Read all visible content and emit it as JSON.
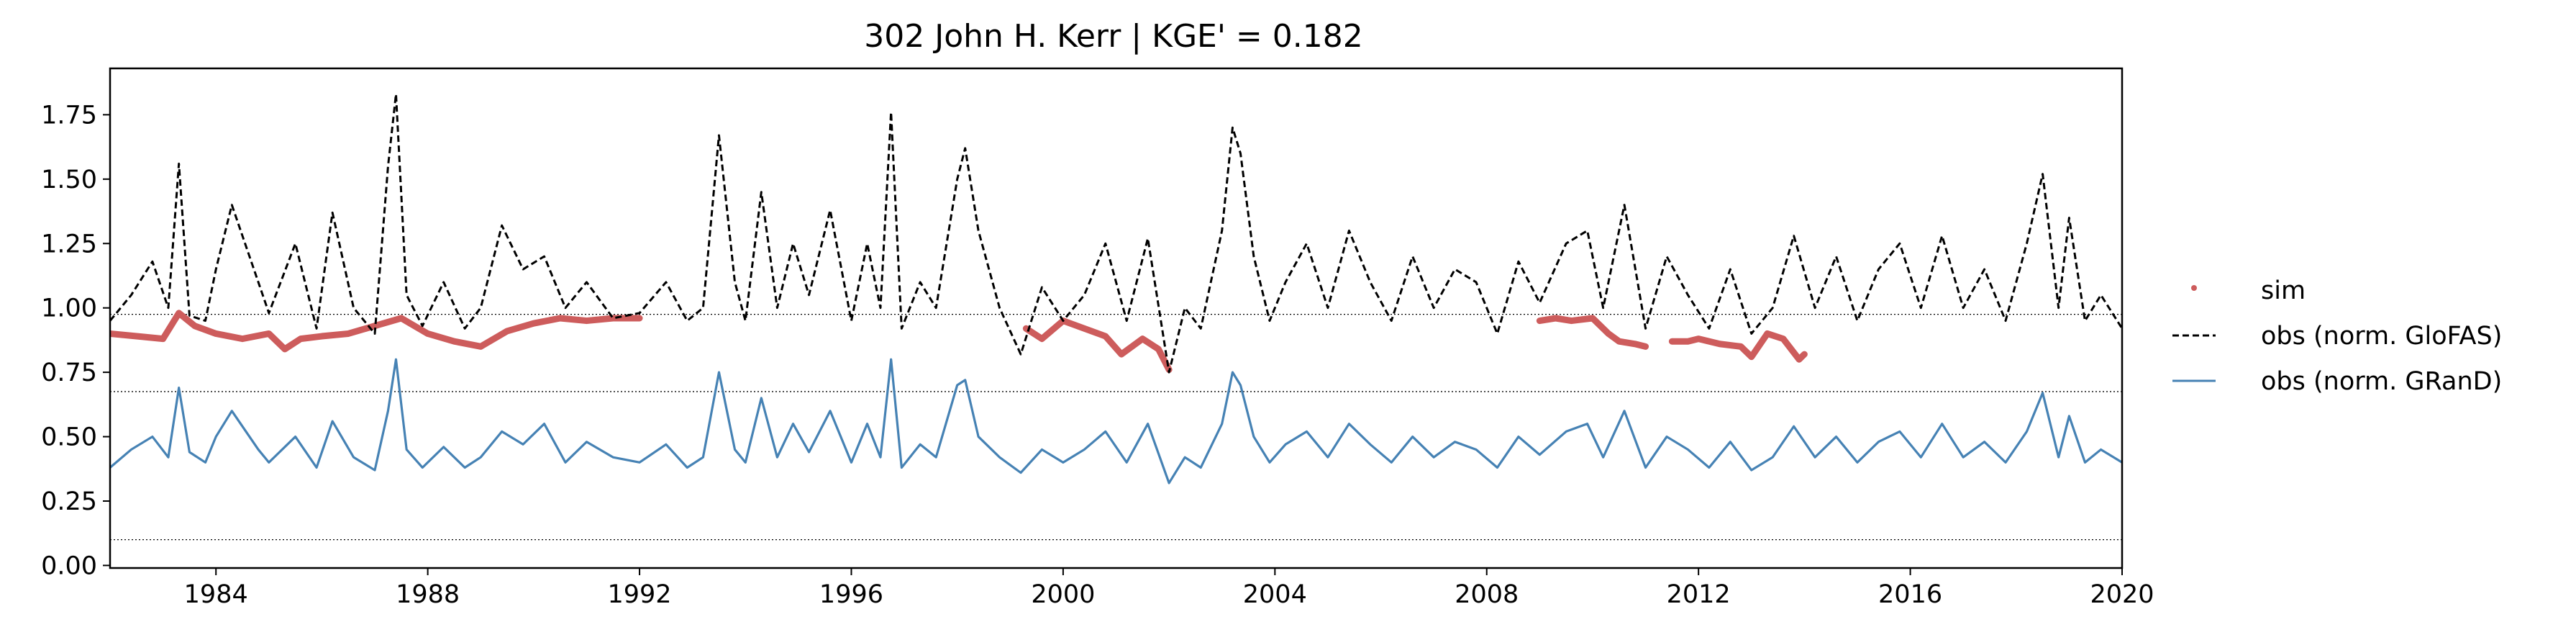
{
  "chart_data": {
    "type": "line",
    "title": "302  John H. Kerr | KGE' = 0.182",
    "xlabel": "",
    "ylabel": "",
    "xlim": [
      1982,
      2020
    ],
    "ylim": [
      -0.01,
      1.93
    ],
    "x_ticks": [
      "1984",
      "1988",
      "1992",
      "1996",
      "2000",
      "2004",
      "2008",
      "2012",
      "2016",
      "2020"
    ],
    "y_ticks": [
      "0.00",
      "0.25",
      "0.50",
      "0.75",
      "1.00",
      "1.25",
      "1.50",
      "1.75"
    ],
    "grid": false,
    "legend_placement": "outside-right",
    "reference_lines": [
      0.975,
      0.675,
      0.1
    ],
    "series": [
      {
        "name": "sim",
        "style": "dots",
        "color": "#cd5c5c",
        "segments": [
          {
            "x": [
              1982.0,
              1982.5,
              1983.0,
              1983.3,
              1983.6,
              1984.0,
              1984.5,
              1985.0,
              1985.3,
              1985.6,
              1986.0,
              1986.5,
              1987.0,
              1987.5,
              1988.0,
              1988.5,
              1989.0,
              1989.5,
              1990.0,
              1990.5,
              1991.0,
              1991.5,
              1992.0
            ],
            "y": [
              0.9,
              0.89,
              0.88,
              0.98,
              0.93,
              0.9,
              0.88,
              0.9,
              0.84,
              0.88,
              0.89,
              0.9,
              0.93,
              0.96,
              0.9,
              0.87,
              0.85,
              0.91,
              0.94,
              0.96,
              0.95,
              0.96,
              0.96
            ]
          },
          {
            "x": [
              1999.3,
              1999.6,
              2000.0,
              2000.4,
              2000.8,
              2001.1,
              2001.5,
              2001.8,
              2002.0
            ],
            "y": [
              0.92,
              0.88,
              0.95,
              0.92,
              0.89,
              0.82,
              0.88,
              0.84,
              0.76
            ]
          },
          {
            "x": [
              2009.0,
              2009.3,
              2009.6,
              2010.0,
              2010.3,
              2010.5,
              2010.8,
              2011.0
            ],
            "y": [
              0.95,
              0.96,
              0.95,
              0.96,
              0.9,
              0.87,
              0.86,
              0.85
            ]
          },
          {
            "x": [
              2011.5,
              2011.8,
              2012.0,
              2012.4,
              2012.8,
              2013.0,
              2013.3,
              2013.6,
              2013.9,
              2014.0
            ],
            "y": [
              0.87,
              0.87,
              0.88,
              0.86,
              0.85,
              0.81,
              0.9,
              0.88,
              0.8,
              0.82
            ]
          }
        ]
      },
      {
        "name": "obs (norm. GloFAS)",
        "style": "dashed",
        "color": "#000000",
        "x": [
          1982.0,
          1982.4,
          1982.8,
          1983.1,
          1983.3,
          1983.5,
          1983.8,
          1984.0,
          1984.3,
          1984.8,
          1985.0,
          1985.5,
          1985.9,
          1986.2,
          1986.6,
          1987.0,
          1987.25,
          1987.4,
          1987.6,
          1987.9,
          1988.3,
          1988.7,
          1989.0,
          1989.4,
          1989.8,
          1990.2,
          1990.6,
          1991.0,
          1991.5,
          1992.0,
          1992.5,
          1992.9,
          1993.2,
          1993.5,
          1993.8,
          1994.0,
          1994.3,
          1994.6,
          1994.9,
          1995.2,
          1995.6,
          1996.0,
          1996.3,
          1996.55,
          1996.75,
          1996.95,
          1997.3,
          1997.6,
          1998.0,
          1998.15,
          1998.4,
          1998.8,
          1999.2,
          1999.6,
          2000.0,
          2000.4,
          2000.8,
          2001.2,
          2001.6,
          2002.0,
          2002.3,
          2002.6,
          2003.0,
          2003.2,
          2003.35,
          2003.6,
          2003.9,
          2004.2,
          2004.6,
          2005.0,
          2005.4,
          2005.8,
          2006.2,
          2006.6,
          2007.0,
          2007.4,
          2007.8,
          2008.2,
          2008.6,
          2009.0,
          2009.5,
          2009.9,
          2010.2,
          2010.6,
          2011.0,
          2011.4,
          2011.8,
          2012.2,
          2012.6,
          2013.0,
          2013.4,
          2013.8,
          2014.2,
          2014.6,
          2015.0,
          2015.4,
          2015.8,
          2016.2,
          2016.6,
          2017.0,
          2017.4,
          2017.8,
          2018.2,
          2018.5,
          2018.8,
          2019.0,
          2019.3,
          2019.6,
          2020.0
        ],
        "y": [
          0.95,
          1.05,
          1.18,
          1.0,
          1.56,
          0.97,
          0.95,
          1.15,
          1.4,
          1.1,
          0.98,
          1.25,
          0.92,
          1.37,
          1.0,
          0.9,
          1.55,
          1.83,
          1.05,
          0.93,
          1.1,
          0.92,
          1.0,
          1.32,
          1.15,
          1.2,
          1.0,
          1.1,
          0.96,
          0.98,
          1.1,
          0.95,
          1.0,
          1.67,
          1.1,
          0.95,
          1.45,
          1.0,
          1.25,
          1.05,
          1.38,
          0.95,
          1.25,
          1.0,
          1.76,
          0.92,
          1.1,
          1.0,
          1.5,
          1.62,
          1.3,
          1.0,
          0.82,
          1.08,
          0.95,
          1.05,
          1.25,
          0.95,
          1.27,
          0.75,
          1.0,
          0.92,
          1.3,
          1.7,
          1.6,
          1.2,
          0.95,
          1.1,
          1.25,
          1.0,
          1.3,
          1.1,
          0.95,
          1.2,
          1.0,
          1.15,
          1.1,
          0.9,
          1.18,
          1.02,
          1.25,
          1.3,
          1.0,
          1.4,
          0.92,
          1.2,
          1.05,
          0.92,
          1.15,
          0.9,
          1.0,
          1.28,
          1.0,
          1.2,
          0.95,
          1.15,
          1.25,
          1.0,
          1.28,
          1.0,
          1.15,
          0.95,
          1.25,
          1.52,
          1.0,
          1.35,
          0.95,
          1.05,
          0.92
        ]
      },
      {
        "name": "obs (norm. GRanD)",
        "style": "solid",
        "color": "#4682b4",
        "x": [
          1982.0,
          1982.4,
          1982.8,
          1983.1,
          1983.3,
          1983.5,
          1983.8,
          1984.0,
          1984.3,
          1984.8,
          1985.0,
          1985.5,
          1985.9,
          1986.2,
          1986.6,
          1987.0,
          1987.25,
          1987.4,
          1987.6,
          1987.9,
          1988.3,
          1988.7,
          1989.0,
          1989.4,
          1989.8,
          1990.2,
          1990.6,
          1991.0,
          1991.5,
          1992.0,
          1992.5,
          1992.9,
          1993.2,
          1993.5,
          1993.8,
          1994.0,
          1994.3,
          1994.6,
          1994.9,
          1995.2,
          1995.6,
          1996.0,
          1996.3,
          1996.55,
          1996.75,
          1996.95,
          1997.3,
          1997.6,
          1998.0,
          1998.15,
          1998.4,
          1998.8,
          1999.2,
          1999.6,
          2000.0,
          2000.4,
          2000.8,
          2001.2,
          2001.6,
          2002.0,
          2002.3,
          2002.6,
          2003.0,
          2003.2,
          2003.35,
          2003.6,
          2003.9,
          2004.2,
          2004.6,
          2005.0,
          2005.4,
          2005.8,
          2006.2,
          2006.6,
          2007.0,
          2007.4,
          2007.8,
          2008.2,
          2008.6,
          2009.0,
          2009.5,
          2009.9,
          2010.2,
          2010.6,
          2011.0,
          2011.4,
          2011.8,
          2012.2,
          2012.6,
          2013.0,
          2013.4,
          2013.8,
          2014.2,
          2014.6,
          2015.0,
          2015.4,
          2015.8,
          2016.2,
          2016.6,
          2017.0,
          2017.4,
          2017.8,
          2018.2,
          2018.5,
          2018.8,
          2019.0,
          2019.3,
          2019.6,
          2020.0
        ],
        "y": [
          0.38,
          0.45,
          0.5,
          0.42,
          0.69,
          0.44,
          0.4,
          0.5,
          0.6,
          0.45,
          0.4,
          0.5,
          0.38,
          0.56,
          0.42,
          0.37,
          0.6,
          0.8,
          0.45,
          0.38,
          0.46,
          0.38,
          0.42,
          0.52,
          0.47,
          0.55,
          0.4,
          0.48,
          0.42,
          0.4,
          0.47,
          0.38,
          0.42,
          0.75,
          0.45,
          0.4,
          0.65,
          0.42,
          0.55,
          0.44,
          0.6,
          0.4,
          0.55,
          0.42,
          0.8,
          0.38,
          0.47,
          0.42,
          0.7,
          0.72,
          0.5,
          0.42,
          0.36,
          0.45,
          0.4,
          0.45,
          0.52,
          0.4,
          0.55,
          0.32,
          0.42,
          0.38,
          0.55,
          0.75,
          0.7,
          0.5,
          0.4,
          0.47,
          0.52,
          0.42,
          0.55,
          0.47,
          0.4,
          0.5,
          0.42,
          0.48,
          0.45,
          0.38,
          0.5,
          0.43,
          0.52,
          0.55,
          0.42,
          0.6,
          0.38,
          0.5,
          0.45,
          0.38,
          0.48,
          0.37,
          0.42,
          0.54,
          0.42,
          0.5,
          0.4,
          0.48,
          0.52,
          0.42,
          0.55,
          0.42,
          0.48,
          0.4,
          0.52,
          0.67,
          0.42,
          0.58,
          0.4,
          0.45,
          0.4
        ]
      }
    ]
  }
}
